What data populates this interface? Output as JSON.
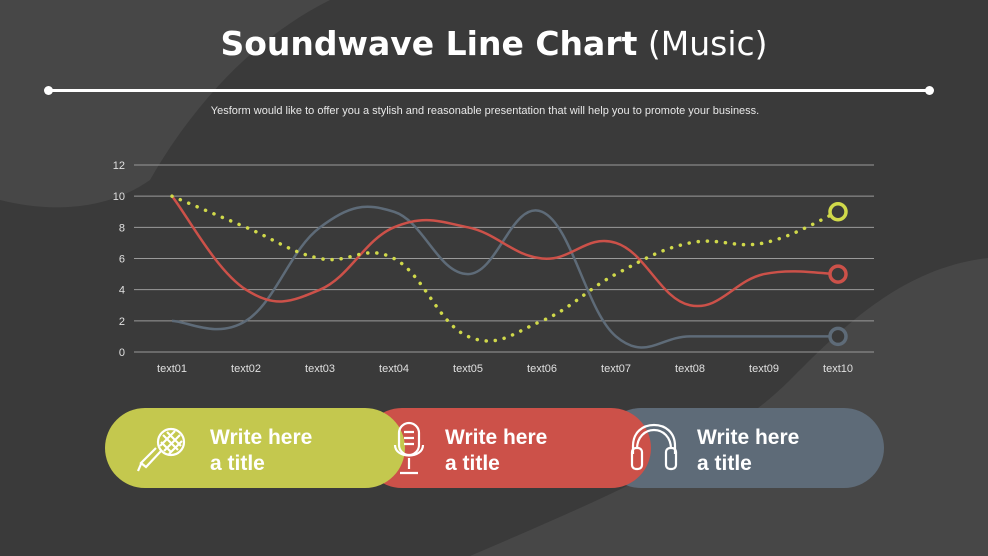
{
  "title": {
    "main": "Soundwave Line Chart",
    "paren": "(Music)"
  },
  "subtitle": "Yesform would like to offer you a stylish and reasonable presentation that will help you to promote your business.",
  "colors": {
    "background": "#3a3a3a",
    "shape": "#4a4a4a",
    "green": "#c4c84e",
    "red": "#cc5149",
    "slate": "#5e6b78",
    "dotted": "#d0d94a",
    "grid": "#9a9a9a"
  },
  "chart_data": {
    "type": "line",
    "categories": [
      "text01",
      "text02",
      "text03",
      "text04",
      "text05",
      "text06",
      "text07",
      "text08",
      "text09",
      "text10"
    ],
    "ylim": [
      0,
      12
    ],
    "yticks": [
      0,
      2,
      4,
      6,
      8,
      10,
      12
    ],
    "grid": true,
    "series": [
      {
        "color": "#cc5149",
        "style": "smooth",
        "values": [
          10,
          4,
          4,
          8,
          8,
          6,
          7,
          3,
          5,
          5
        ]
      },
      {
        "color": "#5e6b78",
        "style": "smooth",
        "values": [
          2,
          2,
          8,
          9,
          5,
          9,
          1,
          1,
          1,
          1
        ]
      },
      {
        "color": "#d0d94a",
        "style": "dotted",
        "values": [
          10,
          8,
          6,
          6,
          1,
          2,
          5,
          7,
          7,
          9
        ]
      }
    ]
  },
  "cards": [
    {
      "line1": "Write here",
      "line2": "a title",
      "icon": "microphone-stick-icon",
      "color": "#c4c84e"
    },
    {
      "line1": "Write here",
      "line2": "a title",
      "icon": "studio-microphone-icon",
      "color": "#cc5149"
    },
    {
      "line1": "Write here",
      "line2": "a title",
      "icon": "headphones-icon",
      "color": "#5e6b78"
    }
  ]
}
